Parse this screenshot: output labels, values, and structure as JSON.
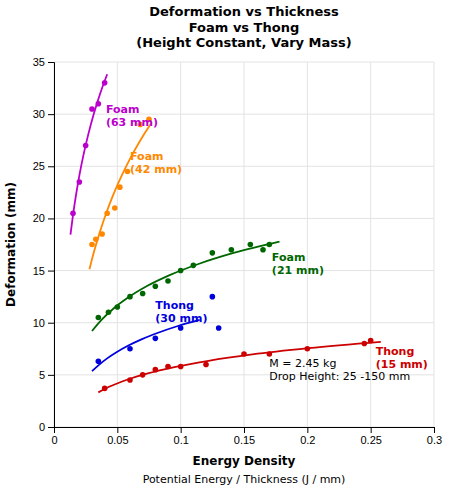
{
  "chart_data": {
    "type": "scatter",
    "title": "Deformation vs Thickness\nFoam vs Thong\n(Height Constant, Vary Mass)",
    "xlabel": "Energy Density",
    "xlabel2": "Potential Energy / Thickness (J / mm)",
    "ylabel": "Deformation (mm)",
    "xlim": [
      0,
      0.3
    ],
    "ylim": [
      0,
      35
    ],
    "xticks": [
      0,
      0.05,
      0.1,
      0.15,
      0.2,
      0.25,
      0.3
    ],
    "yticks": [
      0,
      5,
      10,
      15,
      20,
      25,
      30,
      35
    ],
    "grid": true,
    "annotation": {
      "text": "M = 2.45 kg\nDrop Height: 25 -150 mm",
      "x": 0.17,
      "y": 4.2
    },
    "series": [
      {
        "name": "Foam\n(63 mm)",
        "color": "#bb00cc",
        "x": [
          0.015,
          0.02,
          0.025,
          0.03,
          0.035,
          0.04
        ],
        "values": [
          20.5,
          23.5,
          27.0,
          30.5,
          31.0,
          33.0
        ],
        "label_at": [
          0.041,
          31.0
        ],
        "fit": {
          "type": "line",
          "x": [
            0.013,
            0.01505,
            0.01743,
            0.02018,
            0.02337,
            0.02706,
            0.03133,
            0.03627,
            0.042
          ],
          "values": [
            18.44,
            20.37,
            22.29,
            24.22,
            26.14,
            28.06,
            29.99,
            31.91,
            33.83
          ]
        }
      },
      {
        "name": "Foam\n(42 mm)",
        "color": "#ff8800",
        "x": [
          0.03,
          0.033,
          0.038,
          0.042,
          0.048,
          0.052,
          0.058,
          0.068,
          0.075
        ],
        "values": [
          17.5,
          18.0,
          18.5,
          20.5,
          21.0,
          23.0,
          24.5,
          29.0,
          29.5
        ],
        "label_at": [
          0.06,
          26.5
        ],
        "fit": {
          "type": "line",
          "x": [
            0.028,
            0.03177,
            0.03606,
            0.04092,
            0.04643,
            0.05269,
            0.05979,
            0.06785,
            0.077
          ],
          "values": [
            15.13,
            16.89,
            18.64,
            20.4,
            22.16,
            23.91,
            25.67,
            27.43,
            29.18
          ]
        }
      },
      {
        "name": "Foam\n(21 mm)",
        "color": "#006600",
        "x": [
          0.035,
          0.043,
          0.05,
          0.06,
          0.07,
          0.08,
          0.09,
          0.1,
          0.11,
          0.125,
          0.14,
          0.155,
          0.165,
          0.17
        ],
        "values": [
          10.5,
          11.0,
          11.5,
          12.5,
          12.8,
          13.5,
          14.0,
          15.0,
          15.5,
          16.7,
          17.0,
          17.5,
          17.0,
          17.5
        ],
        "label_at": [
          0.172,
          16.8
        ],
        "fit": {
          "type": "line",
          "x": [
            0.03,
            0.03748,
            0.04682,
            0.05849,
            0.07308,
            0.09129,
            0.11405,
            0.14248,
            0.178
          ],
          "values": [
            9.2,
            10.27,
            11.34,
            12.41,
            13.49,
            14.56,
            15.63,
            16.71,
            17.78
          ]
        }
      },
      {
        "name": "Thong\n(30 mm)",
        "color": "#0000dd",
        "x": [
          0.035,
          0.06,
          0.08,
          0.1,
          0.125,
          0.13
        ],
        "values": [
          6.3,
          7.5,
          8.5,
          9.5,
          12.5,
          9.5
        ],
        "label_at": [
          0.08,
          12.2
        ],
        "fit": {
          "type": "line",
          "x": [
            0.03,
            0.03549,
            0.04198,
            0.04965,
            0.05874,
            0.06948,
            0.08219,
            0.09722,
            0.115
          ],
          "values": [
            5.35,
            5.96,
            6.58,
            7.19,
            7.81,
            8.43,
            9.04,
            9.66,
            10.27
          ]
        }
      },
      {
        "name": "Thong\n(15 mm)",
        "color": "#cc0000",
        "x": [
          0.04,
          0.06,
          0.07,
          0.08,
          0.09,
          0.1,
          0.12,
          0.15,
          0.17,
          0.2,
          0.245,
          0.25
        ],
        "values": [
          3.7,
          4.5,
          5.0,
          5.5,
          5.8,
          5.8,
          6.0,
          7.0,
          7.0,
          7.5,
          8.0,
          8.3
        ],
        "label_at": [
          0.254,
          7.8
        ],
        "fit": {
          "type": "line",
          "x": [
            0.035,
            0.04493,
            0.05767,
            0.07403,
            0.09503,
            0.12198,
            0.15658,
            0.20099,
            0.258
          ],
          "values": [
            3.32,
            3.93,
            4.53,
            5.14,
            5.75,
            6.35,
            6.96,
            7.56,
            8.17
          ]
        }
      }
    ]
  }
}
